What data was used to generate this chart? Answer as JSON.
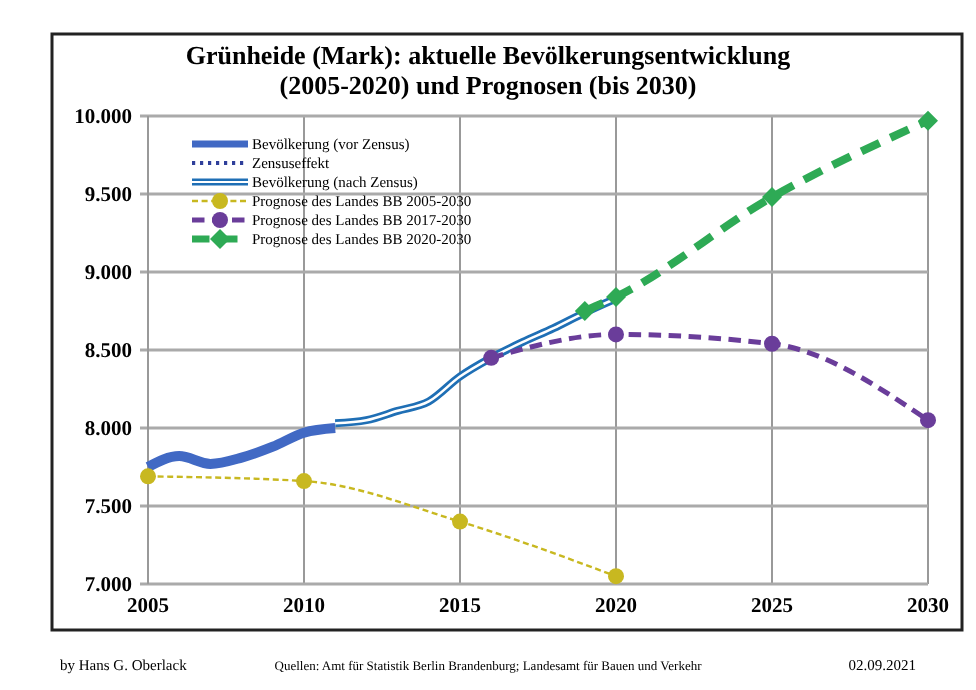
{
  "chart_data": {
    "type": "line",
    "title": "Grünheide (Mark):  aktuelle Bevölkerungsentwicklung (2005-2020) und Prognosen (bis 2030)",
    "xlim": [
      2005,
      2030
    ],
    "xticks": [
      2005,
      2010,
      2015,
      2020,
      2025,
      2030
    ],
    "ylim": [
      7000,
      10000
    ],
    "yticks": [
      {
        "value": 7000,
        "label": "7.000"
      },
      {
        "value": 7500,
        "label": "7.500"
      },
      {
        "value": 8000,
        "label": "8.000"
      },
      {
        "value": 8500,
        "label": "8.500"
      },
      {
        "value": 9000,
        "label": "9.000"
      },
      {
        "value": 9500,
        "label": "9.500"
      },
      {
        "value": 10000,
        "label": "10.000"
      }
    ],
    "grid": true,
    "legend": "top left",
    "series": [
      {
        "name": "Bevölkerung (vor Zensus)",
        "color": "#4169c4",
        "marker": "none",
        "line_style": "solid",
        "x": [
          2005,
          2006,
          2007,
          2008,
          2009,
          2010,
          2011
        ],
        "values": [
          7750,
          7820,
          7770,
          7810,
          7880,
          7970,
          8000
        ]
      },
      {
        "name": "Zensuseffekt",
        "color": "#2f3f9a",
        "marker": "none",
        "line_style": "dotted"
      },
      {
        "name": "Bevölkerung (nach Zensus)",
        "color": "#1f6fb5",
        "marker": "none",
        "line_style": "solid",
        "x": [
          2011,
          2012,
          2013,
          2014,
          2015,
          2016,
          2017,
          2018,
          2019,
          2020
        ],
        "values": [
          8030,
          8050,
          8110,
          8170,
          8330,
          8450,
          8550,
          8640,
          8740,
          8830
        ]
      },
      {
        "name": "Prognose des Landes BB 2005-2030",
        "color": "#c8b820",
        "marker": "circle",
        "line_style": "dashed",
        "x": [
          2005,
          2010,
          2015,
          2020
        ],
        "values": [
          7690,
          7660,
          7400,
          7050
        ]
      },
      {
        "name": "Prognose des Landes BB 2017-2030",
        "color": "#6a3d9a",
        "marker": "circle",
        "line_style": "dashed",
        "x": [
          2016,
          2020,
          2025,
          2030
        ],
        "values": [
          8450,
          8600,
          8540,
          8050
        ]
      },
      {
        "name": "Prognose des Landes BB 2020-2030",
        "color": "#2eaa55",
        "marker": "diamond",
        "line_style": "dashed",
        "x": [
          2019,
          2020,
          2025,
          2030
        ],
        "values": [
          8750,
          8840,
          9480,
          9970
        ]
      }
    ],
    "annotations": [
      "by Hans G. Oberlack",
      "Quellen: Amt für Statistik Berlin Brandenburg; Landesamt für Bauen und Verkehr",
      "02.09.2021"
    ]
  }
}
